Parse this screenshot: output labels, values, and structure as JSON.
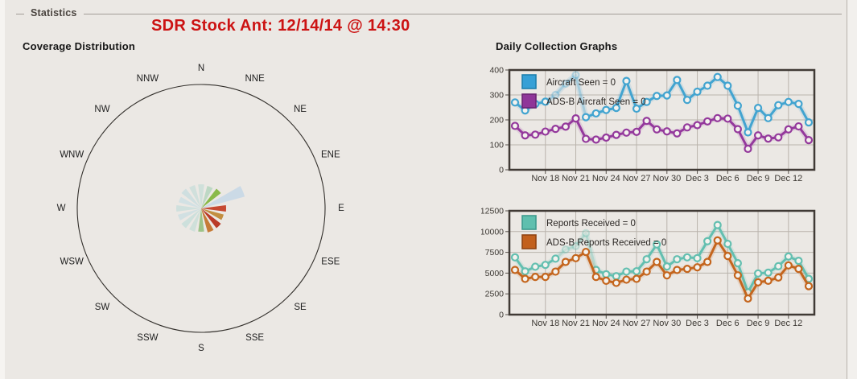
{
  "window": {
    "legend": "Statistics"
  },
  "title": "SDR Stock Ant: 12/14/14 @ 14:30",
  "coverage": {
    "heading": "Coverage Distribution"
  },
  "daily": {
    "heading": "Daily Collection Graphs"
  },
  "colors": {
    "page_background": "#ebe8e4",
    "title_red": "#cc1313",
    "chart_border": "#403a35",
    "gridline": "#b9b3ac",
    "axis_text": "#3c3833",
    "compass_circle": "#33302c"
  },
  "chart_data": [
    {
      "type": "rose",
      "title": "Coverage Distribution",
      "directions": [
        "N",
        "NNE",
        "NE",
        "ENE",
        "E",
        "ESE",
        "SE",
        "SSE",
        "S",
        "SSW",
        "SW",
        "WSW",
        "W",
        "WNW",
        "NW",
        "NNW"
      ],
      "values": [
        30,
        29,
        31,
        56,
        31,
        29,
        31,
        31,
        29,
        30,
        31,
        30,
        31,
        29,
        31,
        30
      ],
      "colors": [
        "#cfe0da",
        "#bdd8c4",
        "#8aba4a",
        "#cbdae6",
        "#c64931",
        "#c28e40",
        "#ba3a28",
        "#c67b36",
        "#9dc388",
        "#cfe0da",
        "#cde0dc",
        "#d1e0e2",
        "#cfe0dd",
        "#d2e1e4",
        "#cfdfe0",
        "#d0e0dc"
      ],
      "note": "16-sector coverage fan, longest lobe toward ENE"
    },
    {
      "type": "line",
      "title": "Aircraft seen per day",
      "ylim": [
        0,
        400
      ],
      "yticks": [
        0,
        100,
        200,
        300,
        400
      ],
      "x_tick_labels": [
        "Nov 18",
        "Nov 21",
        "Nov 24",
        "Nov 27",
        "Nov 30",
        "Dec 3",
        "Dec 6",
        "Dec 9",
        "Dec 12"
      ],
      "x_tick_day_indices": [
        3,
        6,
        9,
        12,
        15,
        18,
        21,
        24,
        27
      ],
      "x_note": "daily points, Nov 15 - Dec 14",
      "grid": true,
      "legend_position": "top-left",
      "series": [
        {
          "name": "Aircraft Seen = 0",
          "color": "#42a4d0",
          "legend_fill": "#36a0d6",
          "legend_stroke": "#1e7fae",
          "faded_line": [
            3,
            7
          ],
          "faded_points": [
            4,
            6
          ],
          "values": [
            270,
            238,
            264,
            273,
            300,
            345,
            380,
            211,
            226,
            240,
            248,
            356,
            245,
            272,
            296,
            298,
            360,
            280,
            313,
            337,
            372,
            337,
            257,
            150,
            248,
            207,
            259,
            272,
            264,
            190
          ]
        },
        {
          "name": "ADS-B Aircraft Seen = 0",
          "color": "#94399c",
          "legend_fill": "#8f3699",
          "legend_stroke": "#6b2573",
          "values": [
            176,
            138,
            141,
            153,
            164,
            173,
            206,
            124,
            121,
            129,
            140,
            149,
            152,
            196,
            162,
            154,
            146,
            170,
            179,
            194,
            207,
            205,
            163,
            84,
            138,
            125,
            130,
            162,
            174,
            119
          ]
        }
      ]
    },
    {
      "type": "line",
      "title": "Reports received per day",
      "ylim": [
        0,
        12500
      ],
      "yticks": [
        0,
        2500,
        5000,
        7500,
        10000,
        12500
      ],
      "x_tick_labels": [
        "Nov 18",
        "Nov 21",
        "Nov 24",
        "Nov 27",
        "Nov 30",
        "Dec 3",
        "Dec 6",
        "Dec 9",
        "Dec 12"
      ],
      "x_tick_day_indices": [
        3,
        6,
        9,
        12,
        15,
        18,
        21,
        24,
        27
      ],
      "x_note": "daily points, Nov 15 - Dec 14",
      "grid": true,
      "legend_position": "top-left",
      "series": [
        {
          "name": "Reports Received = 0",
          "color": "#63bfb0",
          "legend_fill": "#5fbfae",
          "legend_stroke": "#3d9a8d",
          "faded_line": [
            4,
            8
          ],
          "faded_points": [
            5,
            7
          ],
          "values": [
            6900,
            5210,
            5770,
            5990,
            6740,
            7840,
            8250,
            9800,
            5380,
            4860,
            4630,
            5180,
            5220,
            6670,
            8450,
            5800,
            6670,
            6900,
            6800,
            8840,
            10790,
            8520,
            6190,
            2690,
            4960,
            5050,
            5830,
            7000,
            6480,
            4310
          ]
        },
        {
          "name": "ADS-B Reports Received = 0",
          "color": "#c4651d",
          "legend_fill": "#c2601d",
          "legend_stroke": "#8f4413",
          "values": [
            5380,
            4310,
            4540,
            4540,
            5180,
            6350,
            6800,
            7550,
            4540,
            4080,
            3820,
            4210,
            4310,
            5180,
            6350,
            4730,
            5380,
            5510,
            5700,
            6350,
            8940,
            7060,
            4730,
            1940,
            3890,
            4080,
            4470,
            5930,
            5510,
            3430
          ]
        }
      ]
    }
  ]
}
